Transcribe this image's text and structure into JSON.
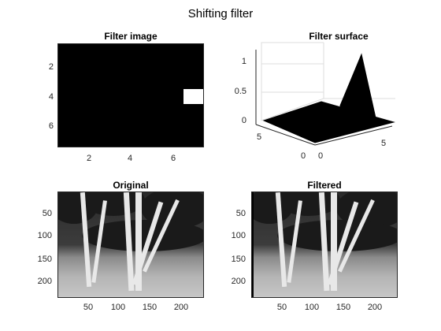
{
  "figure": {
    "title": "Shifting filter"
  },
  "plots": {
    "filter_image": {
      "title": "Filter image",
      "xticks": [
        "2",
        "4",
        "6"
      ],
      "yticks": [
        "2",
        "4",
        "6"
      ]
    },
    "filter_surface": {
      "title": "Filter surface",
      "zticks": [
        "1",
        "0.5",
        "0"
      ],
      "left_ticks": [
        "5",
        "0"
      ],
      "right_ticks": [
        "0",
        "5"
      ]
    },
    "original": {
      "title": "Original",
      "xticks": [
        "50",
        "100",
        "150",
        "200"
      ],
      "yticks": [
        "50",
        "100",
        "150",
        "200"
      ]
    },
    "filtered": {
      "title": "Filtered",
      "xticks": [
        "50",
        "100",
        "150",
        "200"
      ],
      "yticks": [
        "50",
        "100",
        "150",
        "200"
      ]
    }
  },
  "colors": {
    "background": "#000000",
    "highlight": "#ffffff",
    "axis": "#262626"
  }
}
